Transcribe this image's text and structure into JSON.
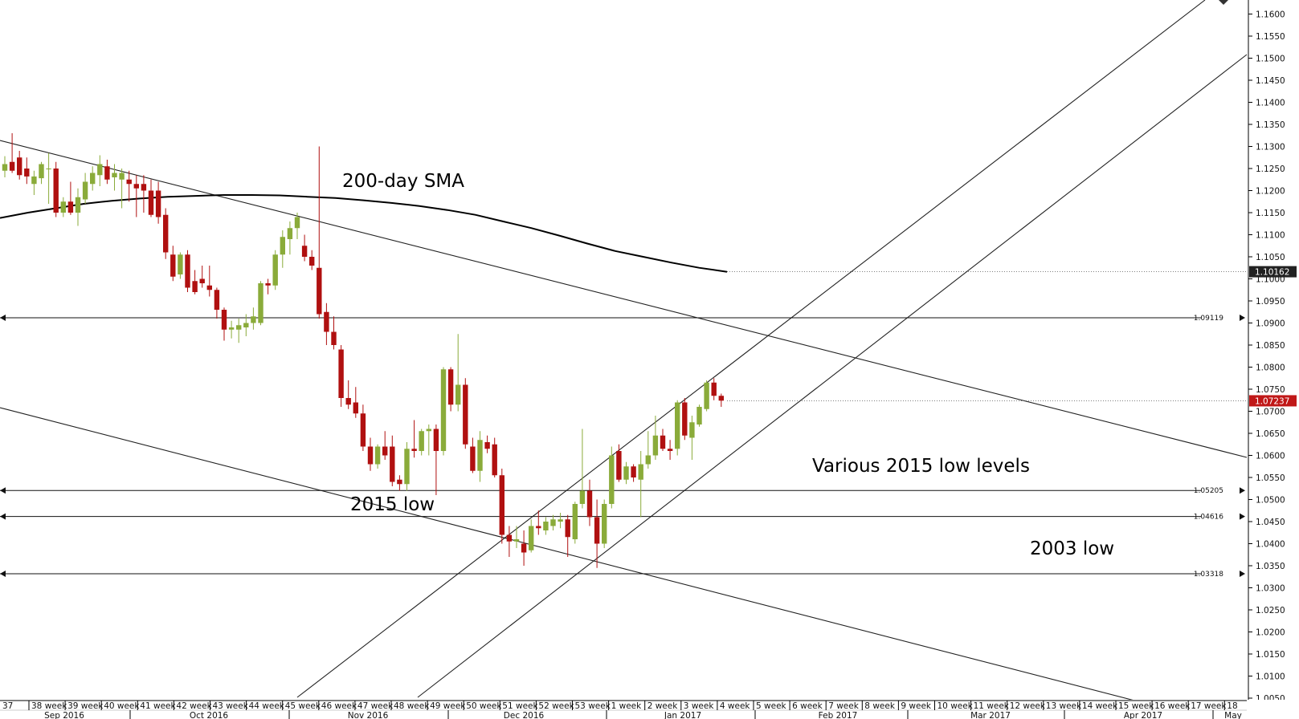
{
  "chart_data": {
    "type": "candlestick",
    "price_axis": {
      "range": [
        1.0025,
        1.1625
      ],
      "ticks": [
        "1.1600",
        "1.1550",
        "1.1500",
        "1.1450",
        "1.1400",
        "1.1350",
        "1.1300",
        "1.1250",
        "1.1200",
        "1.1150",
        "1.1100",
        "1.1050",
        "1.1000",
        "1.0950",
        "1.0900",
        "1.0850",
        "1.0800",
        "1.0750",
        "1.0700",
        "1.0650",
        "1.0600",
        "1.0550",
        "1.0500",
        "1.0450",
        "1.0400",
        "1.0350",
        "1.0300",
        "1.0250",
        "1.0200",
        "1.0150",
        "1.0100",
        "1.0050"
      ],
      "markers": [
        {
          "label": "1.10162",
          "value": 1.10162,
          "style": "dark"
        },
        {
          "label": "1.07237",
          "value": 1.07237,
          "style": "red"
        }
      ]
    },
    "time_axis": {
      "week_labels": [
        "37",
        "38 week",
        "39 week",
        "40 week",
        "41 week",
        "42 week",
        "43 week",
        "44 week",
        "45 week",
        "46 week",
        "47 week",
        "48 week",
        "49 week",
        "50 week",
        "51 week",
        "52 week",
        "53 week",
        "1 week",
        "2 week",
        "3 week",
        "4 week",
        "5 week",
        "6 week",
        "7 week",
        "8 week",
        "9 week",
        "10 week",
        "11 week",
        "12 week",
        "13 week",
        "14 week",
        "15 week",
        "16 week",
        "17 week",
        "18"
      ],
      "month_labels": [
        "Sep 2016",
        "Oct 2016",
        "Nov 2016",
        "Dec 2016",
        "Jan 2017",
        "Feb 2017",
        "Mar 2017",
        "Apr 2017",
        "May"
      ]
    },
    "candles": [
      {
        "o": 1.1245,
        "h": 1.1278,
        "l": 1.123,
        "c": 1.126
      },
      {
        "o": 1.1265,
        "h": 1.133,
        "l": 1.124,
        "c": 1.1245
      },
      {
        "o": 1.1275,
        "h": 1.129,
        "l": 1.1225,
        "c": 1.1235
      },
      {
        "o": 1.125,
        "h": 1.1275,
        "l": 1.1215,
        "c": 1.1232
      },
      {
        "o": 1.1215,
        "h": 1.1245,
        "l": 1.119,
        "c": 1.1232
      },
      {
        "o": 1.1228,
        "h": 1.1265,
        "l": 1.1215,
        "c": 1.126
      },
      {
        "o": 1.125,
        "h": 1.1285,
        "l": 1.117,
        "c": 1.125
      },
      {
        "o": 1.125,
        "h": 1.1265,
        "l": 1.114,
        "c": 1.115
      },
      {
        "o": 1.115,
        "h": 1.1185,
        "l": 1.114,
        "c": 1.1175
      },
      {
        "o": 1.1175,
        "h": 1.122,
        "l": 1.1145,
        "c": 1.115
      },
      {
        "o": 1.115,
        "h": 1.1205,
        "l": 1.112,
        "c": 1.1185
      },
      {
        "o": 1.118,
        "h": 1.124,
        "l": 1.117,
        "c": 1.122
      },
      {
        "o": 1.1215,
        "h": 1.1255,
        "l": 1.12,
        "c": 1.124
      },
      {
        "o": 1.1235,
        "h": 1.128,
        "l": 1.121,
        "c": 1.126
      },
      {
        "o": 1.1255,
        "h": 1.127,
        "l": 1.1215,
        "c": 1.1225
      },
      {
        "o": 1.123,
        "h": 1.126,
        "l": 1.12,
        "c": 1.124
      },
      {
        "o": 1.1225,
        "h": 1.125,
        "l": 1.116,
        "c": 1.124
      },
      {
        "o": 1.1225,
        "h": 1.1245,
        "l": 1.1175,
        "c": 1.1215
      },
      {
        "o": 1.1215,
        "h": 1.1235,
        "l": 1.114,
        "c": 1.1205
      },
      {
        "o": 1.1215,
        "h": 1.1235,
        "l": 1.115,
        "c": 1.12
      },
      {
        "o": 1.12,
        "h": 1.1225,
        "l": 1.114,
        "c": 1.1145
      },
      {
        "o": 1.12,
        "h": 1.122,
        "l": 1.1125,
        "c": 1.114
      },
      {
        "o": 1.1145,
        "h": 1.116,
        "l": 1.1045,
        "c": 1.106
      },
      {
        "o": 1.1055,
        "h": 1.1075,
        "l": 1.0995,
        "c": 1.1005
      },
      {
        "o": 1.101,
        "h": 1.106,
        "l": 1.1,
        "c": 1.1055
      },
      {
        "o": 1.1055,
        "h": 1.1065,
        "l": 1.097,
        "c": 1.098
      },
      {
        "o": 1.0995,
        "h": 1.102,
        "l": 1.0965,
        "c": 1.097
      },
      {
        "o": 1.1,
        "h": 1.103,
        "l": 1.098,
        "c": 1.099
      },
      {
        "o": 1.0985,
        "h": 1.103,
        "l": 1.096,
        "c": 1.0975
      },
      {
        "o": 1.0975,
        "h": 1.098,
        "l": 1.091,
        "c": 1.093
      },
      {
        "o": 1.093,
        "h": 1.0935,
        "l": 1.086,
        "c": 1.0885
      },
      {
        "o": 1.0885,
        "h": 1.0905,
        "l": 1.0865,
        "c": 1.089
      },
      {
        "o": 1.0885,
        "h": 1.091,
        "l": 1.0855,
        "c": 1.0895
      },
      {
        "o": 1.089,
        "h": 1.092,
        "l": 1.087,
        "c": 1.09
      },
      {
        "o": 1.09,
        "h": 1.0935,
        "l": 1.0885,
        "c": 1.0915
      },
      {
        "o": 1.09,
        "h": 1.0995,
        "l": 1.0895,
        "c": 1.099
      },
      {
        "o": 1.099,
        "h": 1.1,
        "l": 1.0965,
        "c": 1.0985
      },
      {
        "o": 1.0985,
        "h": 1.1065,
        "l": 1.0975,
        "c": 1.1055
      },
      {
        "o": 1.1055,
        "h": 1.111,
        "l": 1.1025,
        "c": 1.1095
      },
      {
        "o": 1.109,
        "h": 1.113,
        "l": 1.1055,
        "c": 1.1115
      },
      {
        "o": 1.1115,
        "h": 1.115,
        "l": 1.109,
        "c": 1.114
      },
      {
        "o": 1.1075,
        "h": 1.11,
        "l": 1.104,
        "c": 1.105
      },
      {
        "o": 1.105,
        "h": 1.1065,
        "l": 1.102,
        "c": 1.103
      },
      {
        "o": 1.1025,
        "h": 1.13,
        "l": 1.091,
        "c": 1.092
      },
      {
        "o": 1.0925,
        "h": 1.0945,
        "l": 1.085,
        "c": 1.088
      },
      {
        "o": 1.088,
        "h": 1.0915,
        "l": 1.084,
        "c": 1.085
      },
      {
        "o": 1.084,
        "h": 1.085,
        "l": 1.071,
        "c": 1.073
      },
      {
        "o": 1.073,
        "h": 1.077,
        "l": 1.0705,
        "c": 1.0715
      },
      {
        "o": 1.072,
        "h": 1.0755,
        "l": 1.0685,
        "c": 1.0695
      },
      {
        "o": 1.0695,
        "h": 1.0715,
        "l": 1.061,
        "c": 1.062
      },
      {
        "o": 1.062,
        "h": 1.064,
        "l": 1.0565,
        "c": 1.058
      },
      {
        "o": 1.058,
        "h": 1.0625,
        "l": 1.057,
        "c": 1.062
      },
      {
        "o": 1.062,
        "h": 1.0655,
        "l": 1.059,
        "c": 1.06
      },
      {
        "o": 1.062,
        "h": 1.0645,
        "l": 1.053,
        "c": 1.054
      },
      {
        "o": 1.0545,
        "h": 1.0555,
        "l": 1.052,
        "c": 1.0535
      },
      {
        "o": 1.0535,
        "h": 1.063,
        "l": 1.052,
        "c": 1.0615
      },
      {
        "o": 1.0615,
        "h": 1.068,
        "l": 1.0595,
        "c": 1.061
      },
      {
        "o": 1.061,
        "h": 1.066,
        "l": 1.06,
        "c": 1.0655
      },
      {
        "o": 1.0655,
        "h": 1.067,
        "l": 1.06,
        "c": 1.066
      },
      {
        "o": 1.066,
        "h": 1.067,
        "l": 1.051,
        "c": 1.061
      },
      {
        "o": 1.061,
        "h": 1.08,
        "l": 1.06,
        "c": 1.0795
      },
      {
        "o": 1.0795,
        "h": 1.08,
        "l": 1.07,
        "c": 1.0715
      },
      {
        "o": 1.0715,
        "h": 1.0875,
        "l": 1.07,
        "c": 1.076
      },
      {
        "o": 1.076,
        "h": 1.0775,
        "l": 1.0615,
        "c": 1.0625
      },
      {
        "o": 1.062,
        "h": 1.064,
        "l": 1.056,
        "c": 1.0565
      },
      {
        "o": 1.0565,
        "h": 1.0655,
        "l": 1.054,
        "c": 1.0635
      },
      {
        "o": 1.063,
        "h": 1.0645,
        "l": 1.0605,
        "c": 1.0615
      },
      {
        "o": 1.0625,
        "h": 1.064,
        "l": 1.055,
        "c": 1.0555
      },
      {
        "o": 1.0555,
        "h": 1.057,
        "l": 1.04,
        "c": 1.042
      },
      {
        "o": 1.042,
        "h": 1.044,
        "l": 1.037,
        "c": 1.0405
      },
      {
        "o": 1.0405,
        "h": 1.044,
        "l": 1.039,
        "c": 1.041
      },
      {
        "o": 1.04,
        "h": 1.043,
        "l": 1.035,
        "c": 1.038
      },
      {
        "o": 1.0385,
        "h": 1.0455,
        "l": 1.038,
        "c": 1.044
      },
      {
        "o": 1.044,
        "h": 1.0475,
        "l": 1.042,
        "c": 1.0435
      },
      {
        "o": 1.043,
        "h": 1.046,
        "l": 1.042,
        "c": 1.045
      },
      {
        "o": 1.044,
        "h": 1.0465,
        "l": 1.043,
        "c": 1.0455
      },
      {
        "o": 1.045,
        "h": 1.047,
        "l": 1.0435,
        "c": 1.0455
      },
      {
        "o": 1.0455,
        "h": 1.0465,
        "l": 1.037,
        "c": 1.0415
      },
      {
        "o": 1.041,
        "h": 1.0495,
        "l": 1.04,
        "c": 1.049
      },
      {
        "o": 1.049,
        "h": 1.066,
        "l": 1.048,
        "c": 1.052
      },
      {
        "o": 1.052,
        "h": 1.0545,
        "l": 1.044,
        "c": 1.046
      },
      {
        "o": 1.046,
        "h": 1.05,
        "l": 1.0345,
        "c": 1.04
      },
      {
        "o": 1.04,
        "h": 1.05,
        "l": 1.039,
        "c": 1.049
      },
      {
        "o": 1.049,
        "h": 1.062,
        "l": 1.048,
        "c": 1.06
      },
      {
        "o": 1.061,
        "h": 1.0625,
        "l": 1.054,
        "c": 1.0545
      },
      {
        "o": 1.0545,
        "h": 1.0585,
        "l": 1.0535,
        "c": 1.0575
      },
      {
        "o": 1.0575,
        "h": 1.058,
        "l": 1.054,
        "c": 1.055
      },
      {
        "o": 1.0545,
        "h": 1.061,
        "l": 1.046,
        "c": 1.058
      },
      {
        "o": 1.058,
        "h": 1.0655,
        "l": 1.057,
        "c": 1.06
      },
      {
        "o": 1.06,
        "h": 1.069,
        "l": 1.059,
        "c": 1.0645
      },
      {
        "o": 1.0645,
        "h": 1.066,
        "l": 1.061,
        "c": 1.0615
      },
      {
        "o": 1.0615,
        "h": 1.0635,
        "l": 1.059,
        "c": 1.061
      },
      {
        "o": 1.0615,
        "h": 1.0725,
        "l": 1.06,
        "c": 1.072
      },
      {
        "o": 1.072,
        "h": 1.073,
        "l": 1.0635,
        "c": 1.0645
      },
      {
        "o": 1.064,
        "h": 1.069,
        "l": 1.059,
        "c": 1.0675
      },
      {
        "o": 1.067,
        "h": 1.0715,
        "l": 1.0665,
        "c": 1.071
      },
      {
        "o": 1.0705,
        "h": 1.077,
        "l": 1.07,
        "c": 1.0765
      },
      {
        "o": 1.0765,
        "h": 1.0775,
        "l": 1.0725,
        "c": 1.0735
      },
      {
        "o": 1.0735,
        "h": 1.074,
        "l": 1.071,
        "c": 1.0724
      }
    ],
    "sma200": {
      "label": "200-day SMA",
      "values": [
        1.1138,
        1.115,
        1.116,
        1.117,
        1.1177,
        1.1182,
        1.1186,
        1.1188,
        1.119,
        1.119,
        1.1189,
        1.1186,
        1.1183,
        1.1178,
        1.1172,
        1.1165,
        1.1156,
        1.1145,
        1.113,
        1.1115,
        1.1098,
        1.108,
        1.1063,
        1.105,
        1.1037,
        1.1025,
        1.1016
      ]
    },
    "horizontal_levels": [
      {
        "label": "1.09119",
        "value": 1.09119
      },
      {
        "label": "1.05205",
        "value": 1.05205
      },
      {
        "label": "1.04616",
        "value": 1.04616
      },
      {
        "label": "1.03318",
        "value": 1.03318
      }
    ],
    "annotations": [
      "200-day SMA",
      "Various 2015 low levels",
      "2015 low",
      "2003 low"
    ],
    "colors": {
      "up": "#8aab3a",
      "down": "#b01010",
      "marker_dark": "#222222",
      "marker_red": "#c01818"
    }
  }
}
